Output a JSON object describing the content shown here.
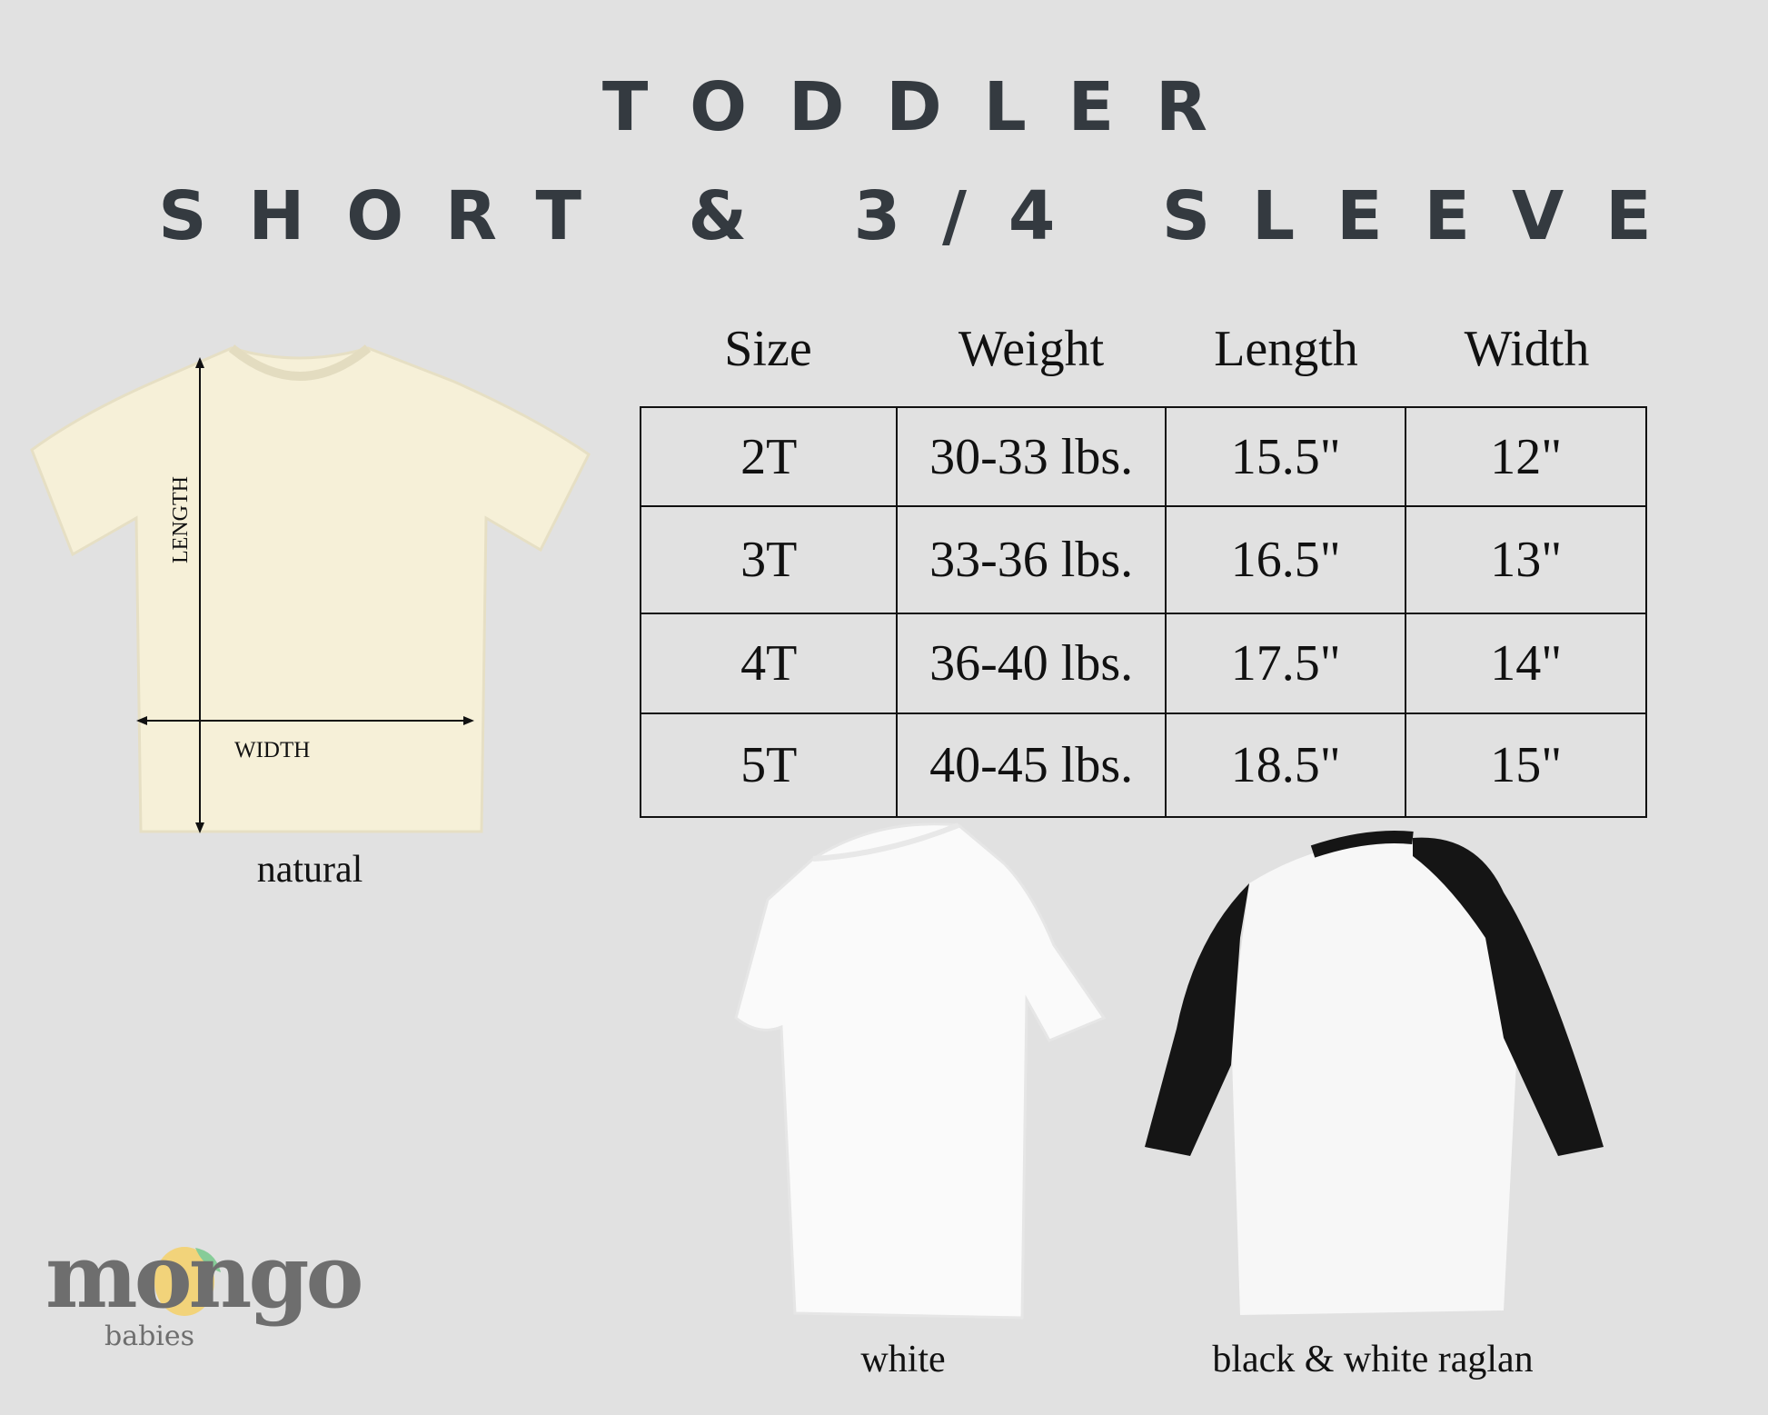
{
  "title": {
    "line1": "TODDLER",
    "line2": "SHORT & 3/4 SLEEVE"
  },
  "table": {
    "headers": [
      "Size",
      "Weight",
      "Length",
      "Width"
    ],
    "rows": [
      [
        "2T",
        "30-33 lbs.",
        "15.5\"",
        "12\""
      ],
      [
        "3T",
        "33-36 lbs.",
        "16.5\"",
        "13\""
      ],
      [
        "4T",
        "36-40 lbs.",
        "17.5\"",
        "14\""
      ],
      [
        "5T",
        "40-45 lbs.",
        "18.5\"",
        "15\""
      ]
    ]
  },
  "shirts": {
    "natural": {
      "label": "natural",
      "length_label": "LENGTH",
      "width_label": "WIDTH",
      "color": "#f6f0d8"
    },
    "white": {
      "label": "white",
      "color": "#fafafa"
    },
    "raglan": {
      "label": "black & white raglan",
      "sleeve_color": "#151515",
      "body_color": "#f7f7f7"
    }
  },
  "logo": {
    "word": "mongo",
    "sub": "babies",
    "text_color": "#6e6e6e",
    "mango_color": "#f2d37a",
    "leaf_color": "#86cc98"
  }
}
